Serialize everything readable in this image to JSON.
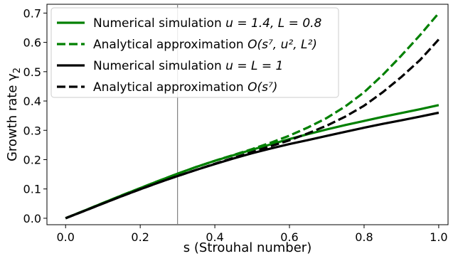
{
  "chart_data": {
    "type": "line",
    "xlabel": "s (Strouhal number)",
    "ylabel_main": "Growth rate γ",
    "ylabel_sub": "2",
    "xlim": [
      -0.05,
      1.025
    ],
    "ylim": [
      -0.022,
      0.73
    ],
    "xticks": [
      "0.0",
      "0.2",
      "0.4",
      "0.6",
      "0.8",
      "1.0"
    ],
    "xtick_values": [
      0.0,
      0.2,
      0.4,
      0.6,
      0.8,
      1.0
    ],
    "yticks": [
      "0.0",
      "0.1",
      "0.2",
      "0.3",
      "0.4",
      "0.5",
      "0.6",
      "0.7"
    ],
    "ytick_values": [
      0.0,
      0.1,
      0.2,
      0.3,
      0.4,
      0.5,
      0.6,
      0.7
    ],
    "vline": {
      "x": 0.3,
      "color": "#808080"
    },
    "legend_position": "top-left",
    "series": [
      {
        "name": "Numerical simulation u = 1.4, L = 0.8",
        "legend_pre": "Numerical simulation ",
        "legend_math": "u = 1.4, L = 0.8",
        "color": "#008000",
        "style": "solid",
        "x": [
          0.0,
          0.05,
          0.1,
          0.15,
          0.2,
          0.25,
          0.3,
          0.35,
          0.4,
          0.45,
          0.5,
          0.55,
          0.6,
          0.65,
          0.7,
          0.75,
          0.8,
          0.85,
          0.9,
          0.95,
          1.0
        ],
        "y": [
          0.0,
          0.026,
          0.052,
          0.078,
          0.103,
          0.128,
          0.152,
          0.175,
          0.196,
          0.215,
          0.234,
          0.252,
          0.27,
          0.287,
          0.303,
          0.318,
          0.332,
          0.346,
          0.359,
          0.372,
          0.386
        ]
      },
      {
        "name": "Analytical approximation O(s^7, u^2, L^2)",
        "legend_pre": "Analytical approximation ",
        "legend_math": "O(s⁷, u², L²)",
        "color": "#008000",
        "style": "dashed",
        "x": [
          0.0,
          0.05,
          0.1,
          0.15,
          0.2,
          0.25,
          0.3,
          0.35,
          0.4,
          0.45,
          0.5,
          0.55,
          0.6,
          0.65,
          0.7,
          0.75,
          0.8,
          0.85,
          0.9,
          0.95,
          1.0
        ],
        "y": [
          0.0,
          0.026,
          0.052,
          0.078,
          0.103,
          0.128,
          0.152,
          0.175,
          0.196,
          0.216,
          0.236,
          0.258,
          0.282,
          0.31,
          0.342,
          0.382,
          0.43,
          0.489,
          0.555,
          0.625,
          0.7
        ]
      },
      {
        "name": "Numerical simulation u = L = 1",
        "legend_pre": "Numerical simulation ",
        "legend_math": "u = L = 1",
        "color": "#000000",
        "style": "solid",
        "x": [
          0.0,
          0.05,
          0.1,
          0.15,
          0.2,
          0.25,
          0.3,
          0.35,
          0.4,
          0.45,
          0.5,
          0.55,
          0.6,
          0.65,
          0.7,
          0.75,
          0.8,
          0.85,
          0.9,
          0.95,
          1.0
        ],
        "y": [
          0.0,
          0.025,
          0.05,
          0.075,
          0.099,
          0.122,
          0.144,
          0.165,
          0.185,
          0.204,
          0.222,
          0.238,
          0.253,
          0.267,
          0.281,
          0.295,
          0.309,
          0.322,
          0.334,
          0.347,
          0.36
        ]
      },
      {
        "name": "Analytical approximation O(s^7)",
        "legend_pre": "Analytical approximation ",
        "legend_math": "O(s⁷)",
        "color": "#000000",
        "style": "dashed",
        "x": [
          0.0,
          0.05,
          0.1,
          0.15,
          0.2,
          0.25,
          0.3,
          0.35,
          0.4,
          0.45,
          0.5,
          0.55,
          0.6,
          0.65,
          0.7,
          0.75,
          0.8,
          0.85,
          0.9,
          0.95,
          1.0
        ],
        "y": [
          0.0,
          0.025,
          0.05,
          0.075,
          0.099,
          0.122,
          0.144,
          0.165,
          0.186,
          0.206,
          0.226,
          0.246,
          0.266,
          0.29,
          0.316,
          0.347,
          0.384,
          0.43,
          0.482,
          0.54,
          0.61
        ]
      }
    ]
  }
}
